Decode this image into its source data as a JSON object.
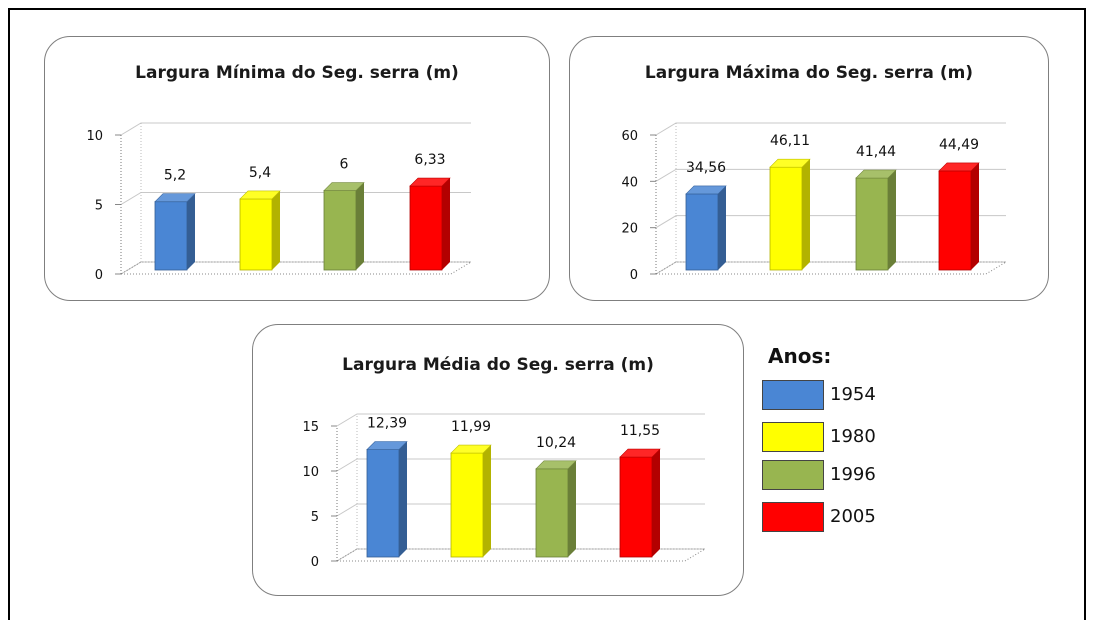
{
  "legend": {
    "title": "Anos:",
    "items": [
      {
        "label": "1954",
        "color": "#4a86d4"
      },
      {
        "label": "1980",
        "color": "#ffff00"
      },
      {
        "label": "1996",
        "color": "#98b550"
      },
      {
        "label": "2005",
        "color": "#ff0000"
      }
    ]
  },
  "chart_data": [
    {
      "type": "bar",
      "title": "Largura Mínima do Seg. serra (m)",
      "categories": [
        "1954",
        "1980",
        "1996",
        "2005"
      ],
      "values": [
        5.2,
        5.4,
        6,
        6.33
      ],
      "data_labels": [
        "5,2",
        "5,4",
        "6",
        "6,33"
      ],
      "ylim": [
        0,
        10
      ],
      "yticks": [
        0,
        5,
        10
      ],
      "ytick_labels": [
        "0",
        "5",
        "10"
      ],
      "grid": true,
      "three_d": true
    },
    {
      "type": "bar",
      "title": "Largura Máxima do Seg. serra (m)",
      "categories": [
        "1954",
        "1980",
        "1996",
        "2005"
      ],
      "values": [
        34.56,
        46.11,
        41.44,
        44.49
      ],
      "data_labels": [
        "34,56",
        "46,11",
        "41,44",
        "44,49"
      ],
      "ylim": [
        0,
        60
      ],
      "yticks": [
        0,
        20,
        40,
        60
      ],
      "ytick_labels": [
        "0",
        "20",
        "40",
        "60"
      ],
      "grid": true,
      "three_d": true
    },
    {
      "type": "bar",
      "title": "Largura Média do Seg. serra (m)",
      "categories": [
        "1954",
        "1980",
        "1996",
        "2005"
      ],
      "values": [
        12.39,
        11.99,
        10.24,
        11.55
      ],
      "data_labels": [
        "12,39",
        "11,99",
        "10,24",
        "11,55"
      ],
      "ylim": [
        0,
        15
      ],
      "yticks": [
        0,
        5,
        10,
        15
      ],
      "ytick_labels": [
        "0",
        "5",
        "10",
        "15"
      ],
      "grid": true,
      "three_d": true
    }
  ]
}
